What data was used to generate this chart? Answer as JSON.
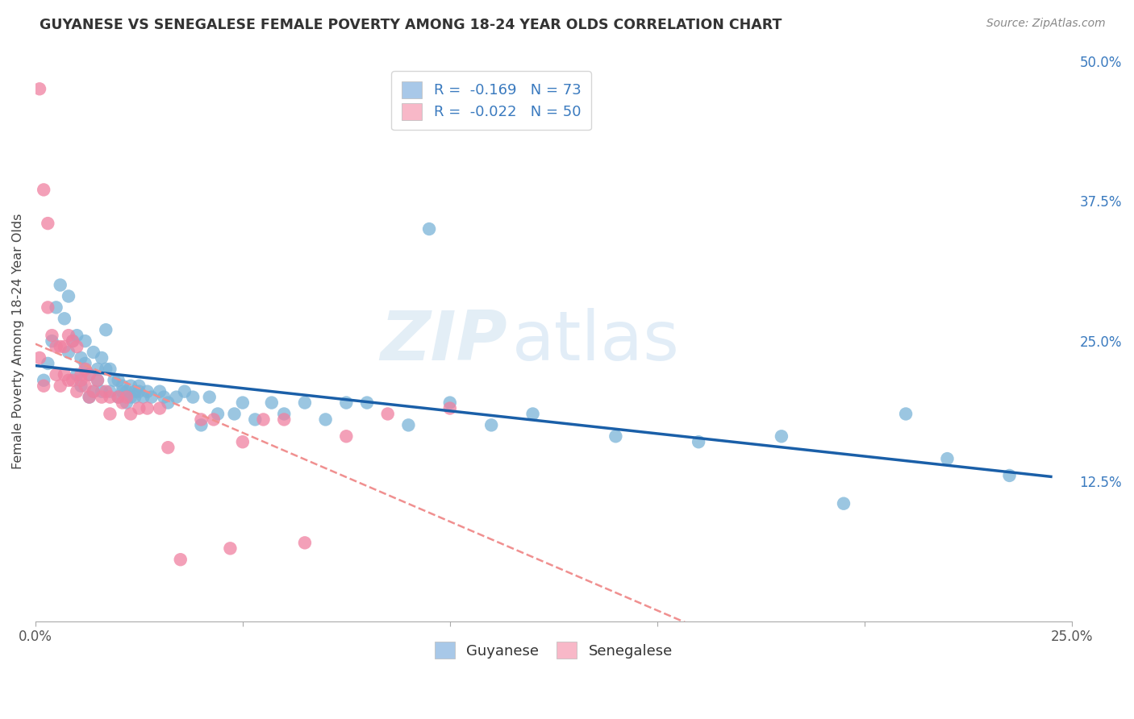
{
  "title": "GUYANESE VS SENEGALESE FEMALE POVERTY AMONG 18-24 YEAR OLDS CORRELATION CHART",
  "source": "Source: ZipAtlas.com",
  "ylabel": "Female Poverty Among 18-24 Year Olds",
  "xlim": [
    0.0,
    0.25
  ],
  "ylim": [
    0.0,
    0.5
  ],
  "xticks": [
    0.0,
    0.05,
    0.1,
    0.15,
    0.2,
    0.25
  ],
  "xticklabels": [
    "0.0%",
    "",
    "",
    "",
    "",
    "25.0%"
  ],
  "yticks_right": [
    0.0,
    0.125,
    0.25,
    0.375,
    0.5
  ],
  "yticklabels_right": [
    "",
    "12.5%",
    "25.0%",
    "37.5%",
    "50.0%"
  ],
  "watermark_zip": "ZIP",
  "watermark_atlas": "atlas",
  "guyanese_color": "#7ab4d8",
  "senegalese_color": "#f080a0",
  "guyanese_line_color": "#1a5fa8",
  "senegalese_line_color": "#f09090",
  "background_color": "#ffffff",
  "grid_color": "#cccccc",
  "legend_patch1_color": "#a8c8e8",
  "legend_patch2_color": "#f8b8c8",
  "legend_text_color": "#3a7abf",
  "guyanese_x": [
    0.002,
    0.003,
    0.004,
    0.005,
    0.006,
    0.007,
    0.008,
    0.008,
    0.009,
    0.01,
    0.01,
    0.011,
    0.011,
    0.012,
    0.012,
    0.013,
    0.013,
    0.014,
    0.014,
    0.015,
    0.015,
    0.016,
    0.016,
    0.017,
    0.017,
    0.018,
    0.018,
    0.019,
    0.02,
    0.02,
    0.021,
    0.021,
    0.022,
    0.022,
    0.023,
    0.023,
    0.024,
    0.024,
    0.025,
    0.025,
    0.026,
    0.027,
    0.028,
    0.03,
    0.031,
    0.032,
    0.034,
    0.036,
    0.038,
    0.04,
    0.042,
    0.044,
    0.048,
    0.05,
    0.053,
    0.057,
    0.06,
    0.065,
    0.07,
    0.075,
    0.08,
    0.09,
    0.095,
    0.1,
    0.11,
    0.12,
    0.14,
    0.16,
    0.18,
    0.195,
    0.21,
    0.22,
    0.235
  ],
  "guyanese_y": [
    0.215,
    0.23,
    0.25,
    0.28,
    0.3,
    0.27,
    0.29,
    0.24,
    0.25,
    0.255,
    0.22,
    0.235,
    0.21,
    0.23,
    0.25,
    0.22,
    0.2,
    0.24,
    0.205,
    0.225,
    0.215,
    0.235,
    0.205,
    0.26,
    0.225,
    0.205,
    0.225,
    0.215,
    0.215,
    0.2,
    0.21,
    0.205,
    0.205,
    0.195,
    0.21,
    0.2,
    0.205,
    0.2,
    0.21,
    0.205,
    0.2,
    0.205,
    0.2,
    0.205,
    0.2,
    0.195,
    0.2,
    0.205,
    0.2,
    0.175,
    0.2,
    0.185,
    0.185,
    0.195,
    0.18,
    0.195,
    0.185,
    0.195,
    0.18,
    0.195,
    0.195,
    0.175,
    0.35,
    0.195,
    0.175,
    0.185,
    0.165,
    0.16,
    0.165,
    0.105,
    0.185,
    0.145,
    0.13
  ],
  "senegalese_x": [
    0.001,
    0.001,
    0.002,
    0.002,
    0.003,
    0.003,
    0.004,
    0.005,
    0.005,
    0.006,
    0.006,
    0.007,
    0.007,
    0.008,
    0.008,
    0.009,
    0.009,
    0.01,
    0.01,
    0.011,
    0.011,
    0.012,
    0.012,
    0.013,
    0.013,
    0.014,
    0.015,
    0.016,
    0.017,
    0.018,
    0.018,
    0.02,
    0.021,
    0.022,
    0.023,
    0.025,
    0.027,
    0.03,
    0.032,
    0.035,
    0.04,
    0.043,
    0.047,
    0.05,
    0.055,
    0.06,
    0.065,
    0.075,
    0.085,
    0.1
  ],
  "senegalese_y": [
    0.475,
    0.235,
    0.385,
    0.21,
    0.355,
    0.28,
    0.255,
    0.245,
    0.22,
    0.245,
    0.21,
    0.245,
    0.22,
    0.255,
    0.215,
    0.25,
    0.215,
    0.205,
    0.245,
    0.215,
    0.22,
    0.21,
    0.225,
    0.22,
    0.2,
    0.205,
    0.215,
    0.2,
    0.205,
    0.2,
    0.185,
    0.2,
    0.195,
    0.2,
    0.185,
    0.19,
    0.19,
    0.19,
    0.155,
    0.055,
    0.18,
    0.18,
    0.065,
    0.16,
    0.18,
    0.18,
    0.07,
    0.165,
    0.185,
    0.19
  ]
}
